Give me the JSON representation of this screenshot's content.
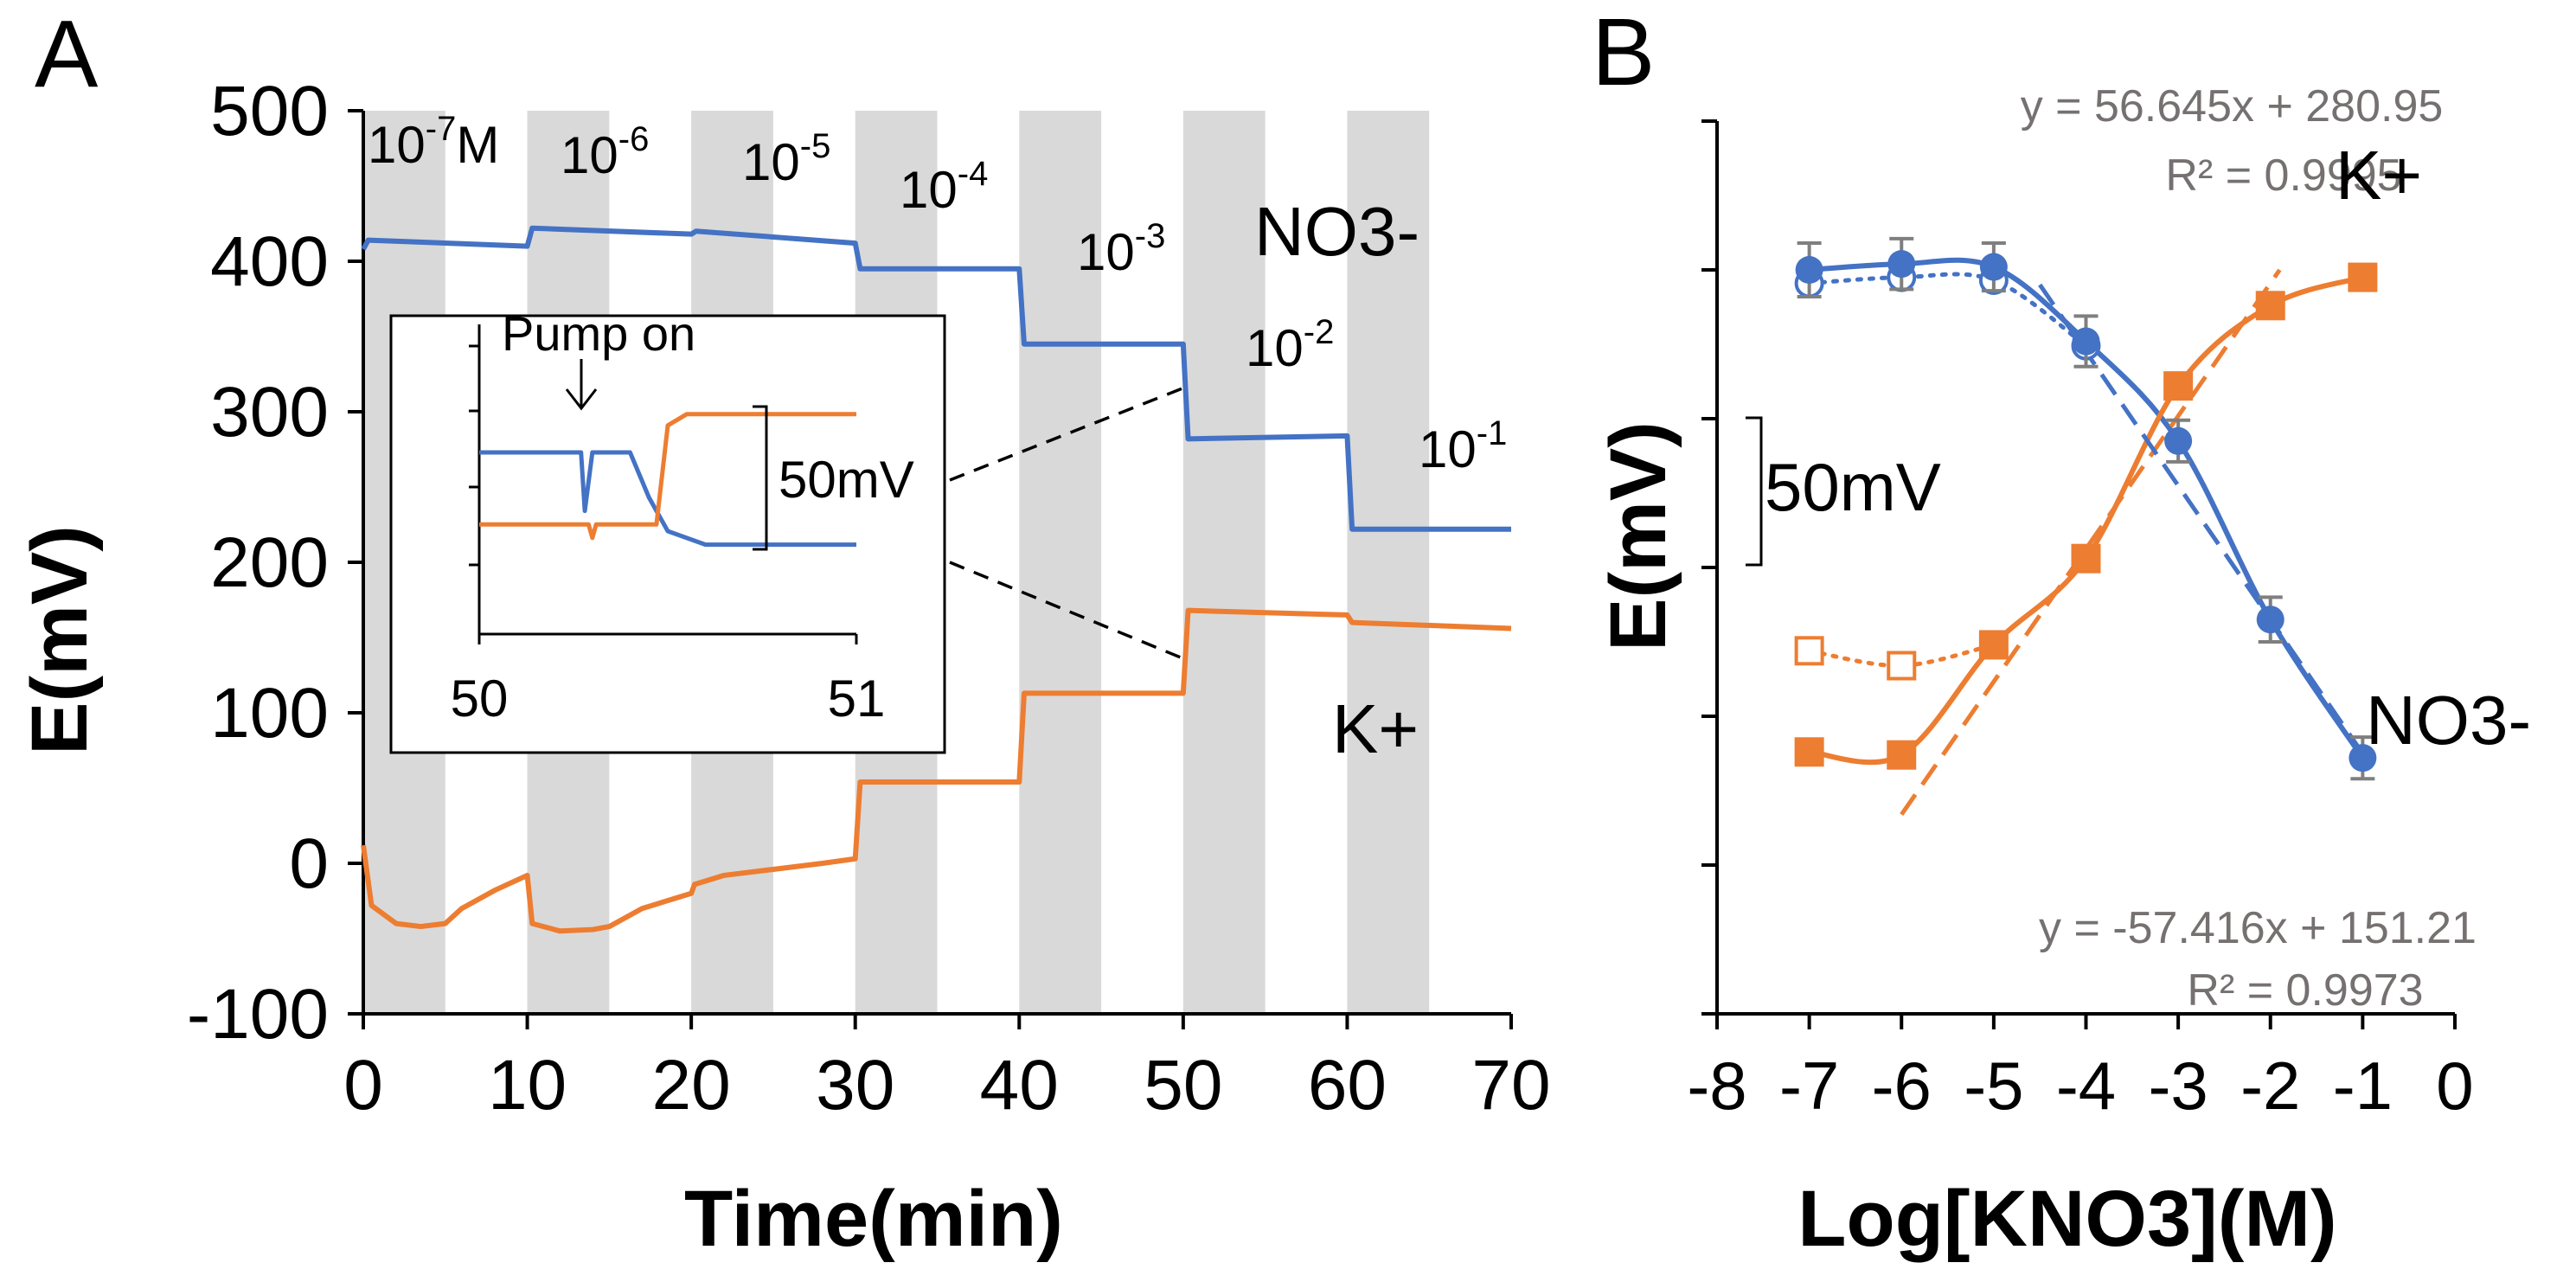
{
  "colors": {
    "no3": "#4472C4",
    "k": "#ED7D31",
    "band": "#D9D9D9",
    "err": "#7F7F7F",
    "eqn": "#767171",
    "axis": "#000000"
  },
  "panel_a": {
    "letter": "A",
    "conc_labels": [
      {
        "base": "10",
        "exp": "-7",
        "suffix": "M"
      },
      {
        "base": "10",
        "exp": "-6",
        "suffix": ""
      },
      {
        "base": "10",
        "exp": "-5",
        "suffix": ""
      },
      {
        "base": "10",
        "exp": "-4",
        "suffix": ""
      },
      {
        "base": "10",
        "exp": "-3",
        "suffix": ""
      },
      {
        "base": "10",
        "exp": "-2",
        "suffix": ""
      },
      {
        "base": "10",
        "exp": "-1",
        "suffix": ""
      }
    ],
    "no3_label": "NO3-",
    "k_label": "K+",
    "inset": {
      "pump_label": "Pump on",
      "scale_label": "50mV"
    }
  },
  "panel_b": {
    "letter": "B",
    "scale_label": "50mV",
    "k_label": "K+",
    "no3_label": "NO3-"
  },
  "chart_data": [
    {
      "type": "line",
      "xlabel": "Time(min)",
      "ylabel": "E(mV)",
      "xlim": [
        0,
        70
      ],
      "ylim": [
        -100,
        500
      ],
      "xticks": [
        0,
        10,
        20,
        30,
        40,
        50,
        60,
        70
      ],
      "yticks": [
        -100,
        0,
        100,
        200,
        300,
        400,
        500
      ],
      "shaded_intervals": [
        [
          0,
          5
        ],
        [
          10,
          15
        ],
        [
          20,
          25
        ],
        [
          30,
          35
        ],
        [
          40,
          45
        ],
        [
          50,
          55
        ],
        [
          60,
          65
        ]
      ],
      "series": [
        {
          "name": "NO3-",
          "x": [
            0,
            0.3,
            10,
            10.3,
            20,
            20.3,
            30,
            30.3,
            40,
            40.3,
            50,
            50.3,
            60,
            60.3,
            70
          ],
          "y": [
            408,
            414,
            410,
            422,
            418,
            420,
            412,
            395,
            395,
            345,
            345,
            282,
            284,
            222,
            222
          ]
        },
        {
          "name": "K+",
          "x": [
            0,
            0.5,
            2,
            3.5,
            5,
            6,
            8,
            10,
            10.3,
            12,
            14,
            15,
            17,
            20,
            20.2,
            22,
            25,
            28,
            30,
            30.3,
            40,
            40.3,
            50,
            50.3,
            60,
            60.3,
            70
          ],
          "y": [
            12,
            -28,
            -40,
            -42,
            -40,
            -30,
            -18,
            -8,
            -40,
            -45,
            -44,
            -42,
            -30,
            -20,
            -14,
            -8,
            -4,
            0,
            3,
            54,
            54,
            113,
            113,
            168,
            165,
            160,
            156
          ]
        }
      ]
    },
    {
      "type": "line",
      "title": "inset",
      "xlim": [
        50,
        51
      ],
      "xticks": [
        50,
        51
      ],
      "series": [
        {
          "name": "NO3-",
          "x": [
            50,
            50.27,
            50.28,
            50.3,
            50.4,
            50.45,
            50.5,
            50.6,
            51
          ],
          "y": [
            1,
            1,
            -0.3,
            1,
            1,
            0,
            -0.75,
            -1.05,
            -1.05
          ]
        },
        {
          "name": "K+",
          "x": [
            50,
            50.29,
            50.3,
            50.31,
            50.47,
            50.5,
            50.55,
            51
          ],
          "y": [
            -0.6,
            -0.6,
            -0.9,
            -0.6,
            -0.6,
            1.6,
            1.85,
            1.85
          ]
        }
      ]
    },
    {
      "type": "scatter",
      "xlabel": "Log[KNO3](M)",
      "ylabel": "E(mV)",
      "xlim": [
        -8,
        0
      ],
      "xticks": [
        -8,
        -7,
        -6,
        -5,
        -4,
        -3,
        -2,
        -1,
        0
      ],
      "ylim": [
        -100,
        500
      ],
      "series": [
        {
          "name": "NO3-",
          "x": [
            -7,
            -6,
            -5,
            -4,
            -3,
            -2,
            -1
          ],
          "y": [
            400,
            404,
            402,
            352,
            285,
            165,
            72
          ],
          "err": [
            18,
            17,
            16,
            17,
            14,
            15,
            14
          ]
        },
        {
          "name": "NO3- (open)",
          "x": [
            -7,
            -6,
            -5,
            -4
          ],
          "y": [
            391,
            395,
            393,
            349
          ],
          "err": [
            0,
            0,
            0,
            0
          ]
        },
        {
          "name": "K+",
          "x": [
            -7,
            -6,
            -5,
            -4,
            -3,
            -2,
            -1
          ],
          "y": [
            76,
            74,
            148,
            206,
            322,
            376,
            395
          ],
          "err": [
            0,
            0,
            0,
            0,
            0,
            0,
            0
          ]
        },
        {
          "name": "K+ (open)",
          "x": [
            -7,
            -6
          ],
          "y": [
            144,
            134
          ],
          "err": [
            4,
            5
          ]
        }
      ],
      "trendlines": [
        {
          "equation": "y = 56.645x + 280.95",
          "r2": "R² = 0.9995"
        },
        {
          "equation": "y = -57.416x + 151.21",
          "r2": "R² = 0.9973"
        }
      ]
    }
  ]
}
